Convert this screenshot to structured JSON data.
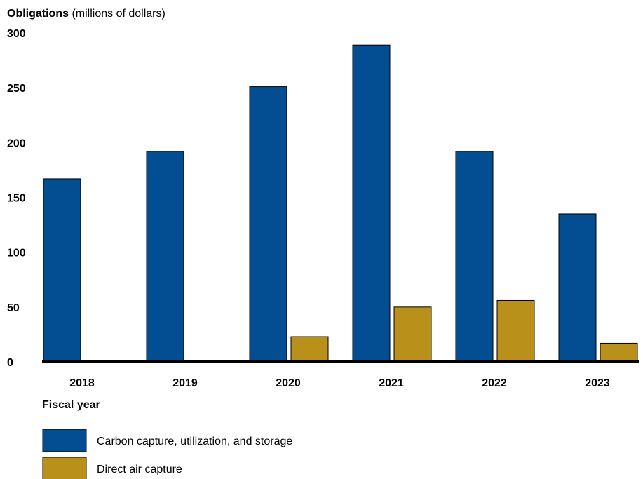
{
  "chart_data": {
    "type": "bar",
    "ylabel_bold": "Obligations",
    "ylabel_rest": "(millions of dollars)",
    "xlabel": "Fiscal year",
    "categories": [
      "2018",
      "2019",
      "2020",
      "2021",
      "2022",
      "2023"
    ],
    "ylim": [
      0,
      300
    ],
    "yticks": [
      "0",
      "50",
      "100",
      "150",
      "200",
      "250",
      "300"
    ],
    "grid": false,
    "legend_position": "bottom-left",
    "series": [
      {
        "name": "Carbon capture, utilization, and storage",
        "color": "#034E93",
        "values": [
          167,
          192,
          251,
          289,
          192,
          135
        ]
      },
      {
        "name": "Direct air capture",
        "color": "#B9911A",
        "values": [
          0,
          0,
          23,
          50,
          56,
          17
        ]
      }
    ]
  }
}
